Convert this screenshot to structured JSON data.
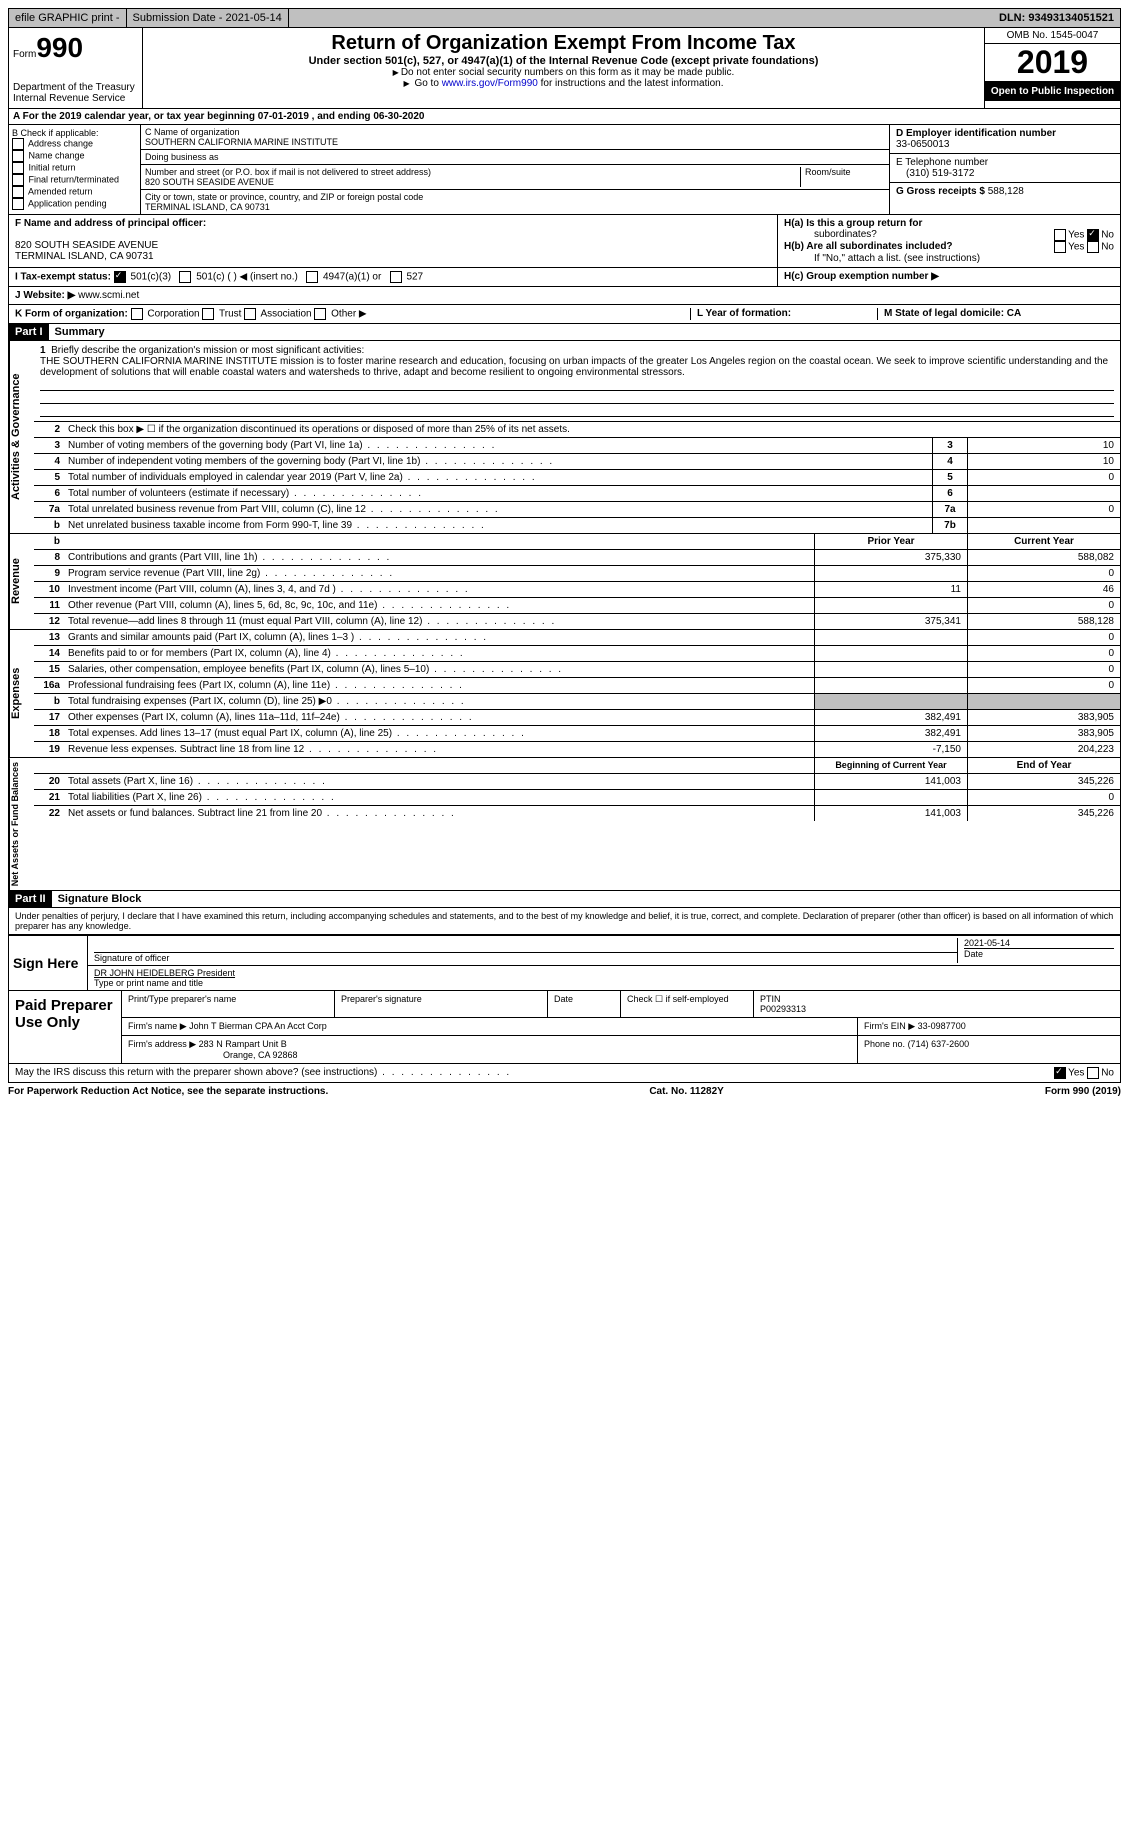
{
  "topbar": {
    "efile": "efile GRAPHIC print -",
    "submission": "Submission Date - 2021-05-14",
    "dln": "DLN: 93493134051521"
  },
  "header": {
    "form_label": "Form",
    "form_num": "990",
    "dept": "Department of the Treasury\nInternal Revenue Service",
    "title": "Return of Organization Exempt From Income Tax",
    "sub": "Under section 501(c), 527, or 4947(a)(1) of the Internal Revenue Code (except private foundations)",
    "note1": "Do not enter social security numbers on this form as it may be made public.",
    "note2_pre": "Go to ",
    "note2_link": "www.irs.gov/Form990",
    "note2_post": " for instructions and the latest information.",
    "omb": "OMB No. 1545-0047",
    "year": "2019",
    "open": "Open to Public Inspection"
  },
  "row_a": "A For the 2019 calendar year, or tax year beginning 07-01-2019   , and ending 06-30-2020",
  "col_b": {
    "title": "B Check if applicable:",
    "items": [
      "Address change",
      "Name change",
      "Initial return",
      "Final return/terminated",
      "Amended return",
      "Application pending"
    ]
  },
  "col_c": {
    "name_label": "C Name of organization",
    "name": "SOUTHERN CALIFORNIA MARINE INSTITUTE",
    "dba_label": "Doing business as",
    "dba": "",
    "street_label": "Number and street (or P.O. box if mail is not delivered to street address)",
    "room_label": "Room/suite",
    "street": "820 SOUTH SEASIDE AVENUE",
    "city_label": "City or town, state or province, country, and ZIP or foreign postal code",
    "city": "TERMINAL ISLAND, CA  90731"
  },
  "col_d": {
    "ein_label": "D Employer identification number",
    "ein": "33-0650013",
    "tel_label": "E Telephone number",
    "tel": "(310) 519-3172",
    "gross_label": "G Gross receipts $",
    "gross": "588,128"
  },
  "f": {
    "label": "F Name and address of principal officer:",
    "addr1": "820 SOUTH SEASIDE AVENUE",
    "addr2": "TERMINAL ISLAND, CA  90731"
  },
  "h": {
    "a_label": "H(a)  Is this a group return for",
    "a_sub": "subordinates?",
    "b_label": "H(b)  Are all subordinates included?",
    "b_note": "If \"No,\" attach a list. (see instructions)",
    "c_label": "H(c)  Group exemption number ▶",
    "yes": "Yes",
    "no": "No"
  },
  "i": {
    "label": "I   Tax-exempt status:",
    "opt1": "501(c)(3)",
    "opt2": "501(c) (  ) ◀ (insert no.)",
    "opt3": "4947(a)(1) or",
    "opt4": "527"
  },
  "j": {
    "label": "J   Website: ▶",
    "value": "www.scmi.net"
  },
  "k": {
    "label": "K Form of organization:",
    "opts": [
      "Corporation",
      "Trust",
      "Association",
      "Other ▶"
    ],
    "l_label": "L Year of formation:",
    "m_label": "M State of legal domicile: CA"
  },
  "part1": {
    "label": "Part I",
    "title": "Summary"
  },
  "mission": {
    "num": "1",
    "label": "Briefly describe the organization's mission or most significant activities:",
    "text": "THE SOUTHERN CALIFORNIA MARINE INSTITUTE mission is to foster marine research and education, focusing on urban impacts of the greater Los Angeles region on the coastal ocean. We seek to improve scientific understanding and the development of solutions that will enable coastal waters and watersheds to thrive, adapt and become resilient to ongoing environmental stressors."
  },
  "line2": {
    "num": "2",
    "text": "Check this box ▶ ☐  if the organization discontinued its operations or disposed of more than 25% of its net assets."
  },
  "gov_lines": [
    {
      "num": "3",
      "desc": "Number of voting members of the governing body (Part VI, line 1a)",
      "box": "3",
      "val": "10"
    },
    {
      "num": "4",
      "desc": "Number of independent voting members of the governing body (Part VI, line 1b)",
      "box": "4",
      "val": "10"
    },
    {
      "num": "5",
      "desc": "Total number of individuals employed in calendar year 2019 (Part V, line 2a)",
      "box": "5",
      "val": "0"
    },
    {
      "num": "6",
      "desc": "Total number of volunteers (estimate if necessary)",
      "box": "6",
      "val": ""
    },
    {
      "num": "7a",
      "desc": "Total unrelated business revenue from Part VIII, column (C), line 12",
      "box": "7a",
      "val": "0"
    },
    {
      "num": "b",
      "desc": "Net unrelated business taxable income from Form 990-T, line 39",
      "box": "7b",
      "val": ""
    }
  ],
  "rev_head": {
    "prior": "Prior Year",
    "current": "Current Year"
  },
  "rev_lines": [
    {
      "num": "8",
      "desc": "Contributions and grants (Part VIII, line 1h)",
      "prior": "375,330",
      "cur": "588,082"
    },
    {
      "num": "9",
      "desc": "Program service revenue (Part VIII, line 2g)",
      "prior": "",
      "cur": "0"
    },
    {
      "num": "10",
      "desc": "Investment income (Part VIII, column (A), lines 3, 4, and 7d )",
      "prior": "11",
      "cur": "46"
    },
    {
      "num": "11",
      "desc": "Other revenue (Part VIII, column (A), lines 5, 6d, 8c, 9c, 10c, and 11e)",
      "prior": "",
      "cur": "0"
    },
    {
      "num": "12",
      "desc": "Total revenue—add lines 8 through 11 (must equal Part VIII, column (A), line 12)",
      "prior": "375,341",
      "cur": "588,128"
    }
  ],
  "exp_lines": [
    {
      "num": "13",
      "desc": "Grants and similar amounts paid (Part IX, column (A), lines 1–3 )",
      "prior": "",
      "cur": "0"
    },
    {
      "num": "14",
      "desc": "Benefits paid to or for members (Part IX, column (A), line 4)",
      "prior": "",
      "cur": "0"
    },
    {
      "num": "15",
      "desc": "Salaries, other compensation, employee benefits (Part IX, column (A), lines 5–10)",
      "prior": "",
      "cur": "0"
    },
    {
      "num": "16a",
      "desc": "Professional fundraising fees (Part IX, column (A), line 11e)",
      "prior": "",
      "cur": "0"
    },
    {
      "num": "b",
      "desc": "Total fundraising expenses (Part IX, column (D), line 25) ▶0",
      "prior": "shade",
      "cur": "shade"
    },
    {
      "num": "17",
      "desc": "Other expenses (Part IX, column (A), lines 11a–11d, 11f–24e)",
      "prior": "382,491",
      "cur": "383,905"
    },
    {
      "num": "18",
      "desc": "Total expenses. Add lines 13–17 (must equal Part IX, column (A), line 25)",
      "prior": "382,491",
      "cur": "383,905"
    },
    {
      "num": "19",
      "desc": "Revenue less expenses. Subtract line 18 from line 12",
      "prior": "-7,150",
      "cur": "204,223"
    }
  ],
  "net_head": {
    "prior": "Beginning of Current Year",
    "current": "End of Year"
  },
  "net_lines": [
    {
      "num": "20",
      "desc": "Total assets (Part X, line 16)",
      "prior": "141,003",
      "cur": "345,226"
    },
    {
      "num": "21",
      "desc": "Total liabilities (Part X, line 26)",
      "prior": "",
      "cur": "0"
    },
    {
      "num": "22",
      "desc": "Net assets or fund balances. Subtract line 21 from line 20",
      "prior": "141,003",
      "cur": "345,226"
    }
  ],
  "vtabs": {
    "gov": "Activities & Governance",
    "rev": "Revenue",
    "exp": "Expenses",
    "net": "Net Assets or Fund Balances"
  },
  "part2": {
    "label": "Part II",
    "title": "Signature Block"
  },
  "sig": {
    "declare": "Under penalties of perjury, I declare that I have examined this return, including accompanying schedules and statements, and to the best of my knowledge and belief, it is true, correct, and complete. Declaration of preparer (other than officer) is based on all information of which preparer has any knowledge.",
    "sign_here": "Sign Here",
    "sig_label": "Signature of officer",
    "date": "2021-05-14",
    "date_label": "Date",
    "name": "DR JOHN HEIDELBERG  President",
    "name_label": "Type or print name and title"
  },
  "prep": {
    "label": "Paid Preparer Use Only",
    "h1": "Print/Type preparer's name",
    "h2": "Preparer's signature",
    "h3": "Date",
    "h4_pre": "Check ☐ if self-employed",
    "h5": "PTIN",
    "ptin": "P00293313",
    "firm_label": "Firm's name    ▶",
    "firm": "John T Bierman CPA An Acct Corp",
    "ein_label": "Firm's EIN ▶",
    "ein": "33-0987700",
    "addr_label": "Firm's address ▶",
    "addr1": "283 N Rampart Unit B",
    "addr2": "Orange, CA  92868",
    "phone_label": "Phone no.",
    "phone": "(714) 637-2600"
  },
  "footer": {
    "discuss": "May the IRS discuss this return with the preparer shown above? (see instructions)",
    "yes": "Yes",
    "no": "No",
    "paperwork": "For Paperwork Reduction Act Notice, see the separate instructions.",
    "cat": "Cat. No. 11282Y",
    "form": "Form 990 (2019)"
  }
}
